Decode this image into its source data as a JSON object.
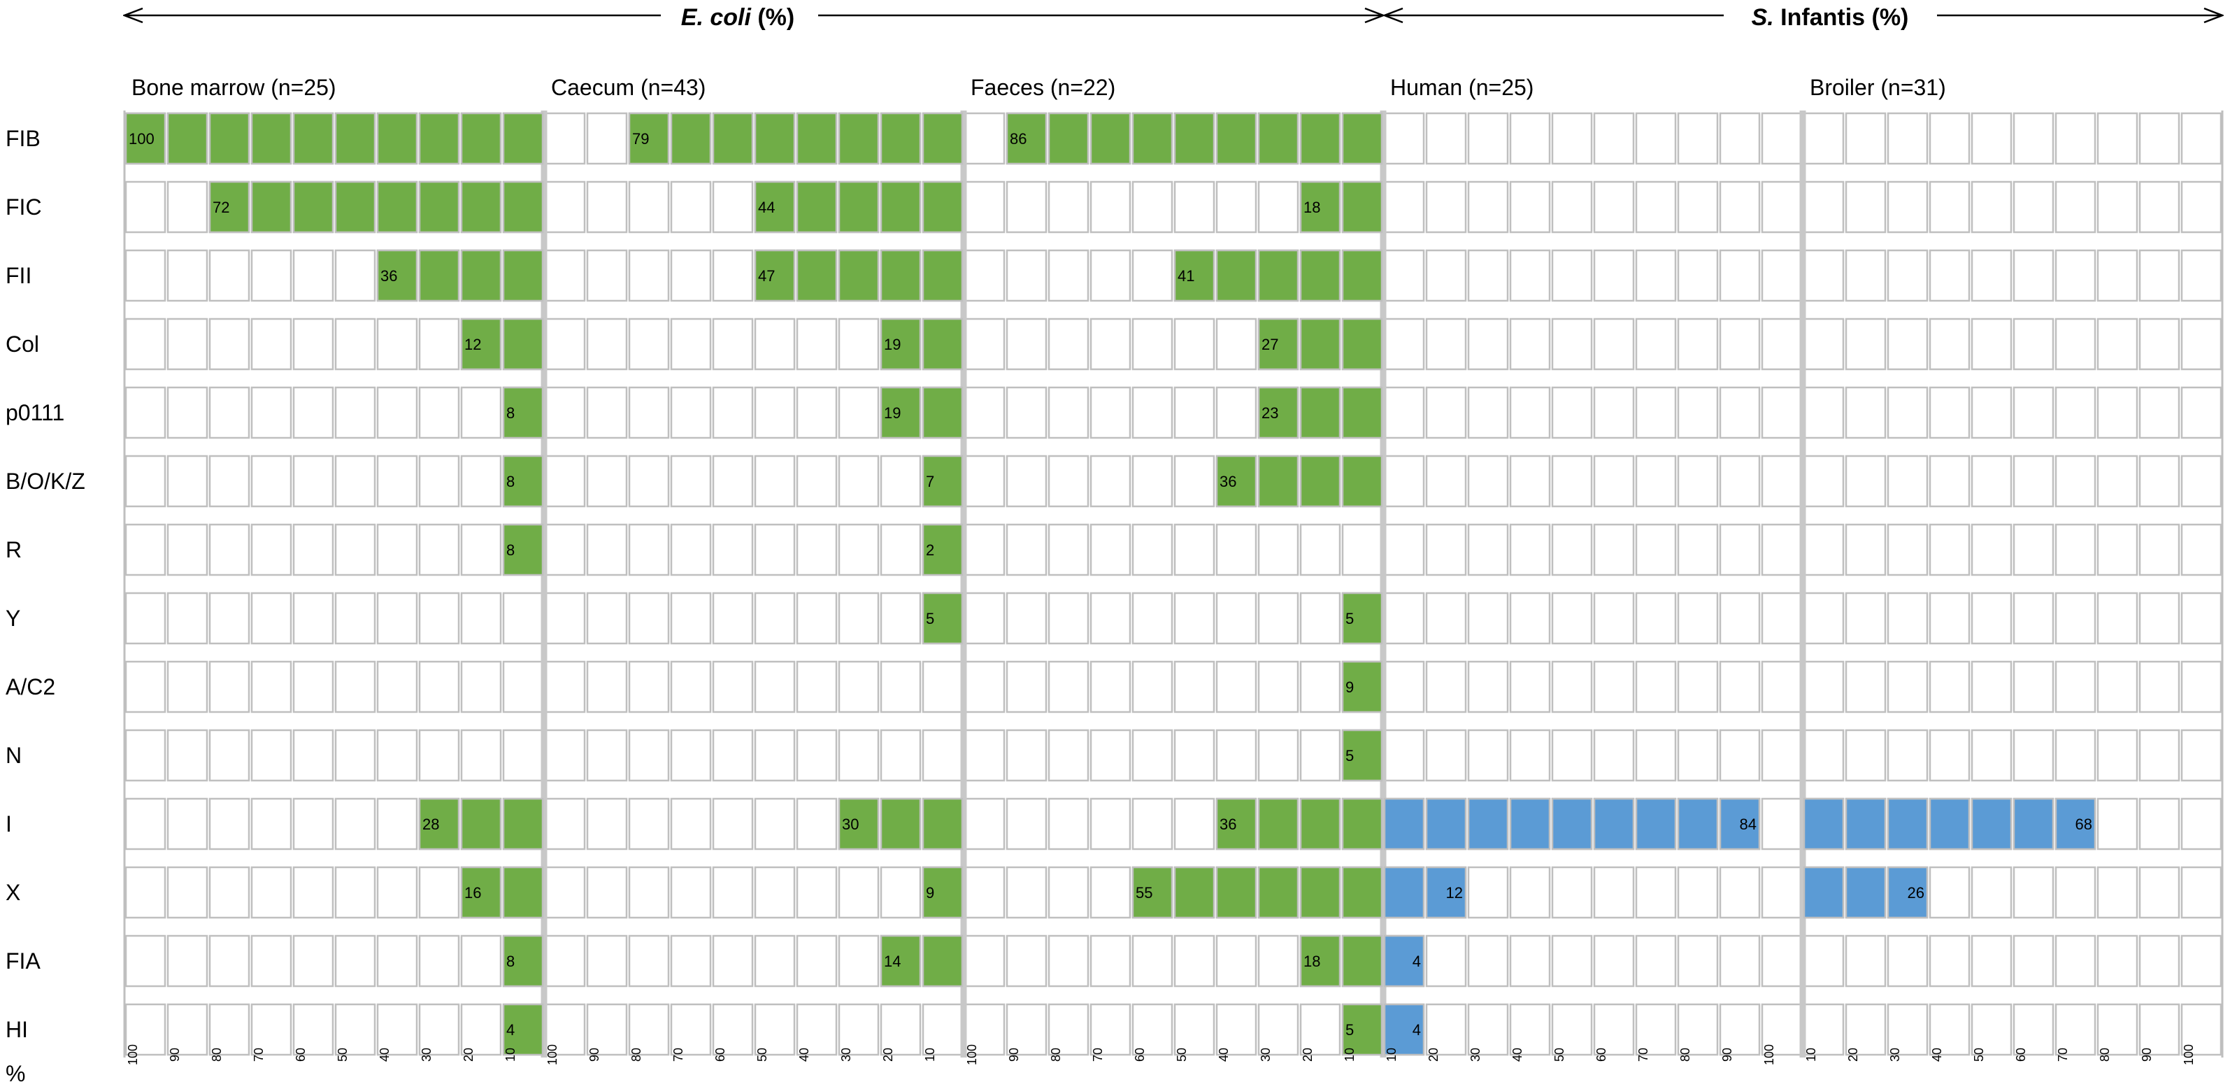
{
  "chart_data": {
    "type": "bar",
    "headers": [
      {
        "title_prefix": "E. coli",
        "title_suffix": " (%)"
      },
      {
        "title_prefix": "S.",
        "title_suffix": " Infantis (%)"
      }
    ],
    "row_axis_label": "%",
    "categories": [
      "FIB",
      "FIC",
      "FII",
      "Col",
      "p0111",
      "B/O/K/Z",
      "R",
      "Y",
      "A/C2",
      "N",
      "I",
      "X",
      "FIA",
      "HI"
    ],
    "panels": [
      {
        "name": "Bone marrow (n=25)",
        "direction": "right-to-left",
        "color": "#70AD47",
        "values": [
          100,
          72,
          36,
          12,
          8,
          8,
          8,
          null,
          null,
          null,
          28,
          16,
          8,
          4
        ]
      },
      {
        "name": "Caecum (n=43)",
        "direction": "right-to-left",
        "color": "#70AD47",
        "values": [
          79,
          44,
          47,
          19,
          19,
          7,
          2,
          5,
          null,
          null,
          30,
          9,
          14,
          null
        ]
      },
      {
        "name": "Faeces (n=22)",
        "direction": "right-to-left",
        "color": "#70AD47",
        "values": [
          86,
          18,
          41,
          27,
          23,
          36,
          null,
          5,
          9,
          5,
          36,
          55,
          18,
          5
        ]
      },
      {
        "name": "Human (n=25)",
        "direction": "left-to-right",
        "color": "#5B9BD5",
        "values": [
          null,
          null,
          null,
          null,
          null,
          null,
          null,
          null,
          null,
          null,
          84,
          12,
          4,
          4
        ]
      },
      {
        "name": "Broiler (n=31)",
        "direction": "left-to-right",
        "color": "#5B9BD5",
        "values": [
          null,
          null,
          null,
          null,
          null,
          null,
          null,
          null,
          null,
          null,
          68,
          26,
          null,
          null
        ]
      }
    ],
    "tick_labels_desc": [
      "100",
      "90",
      "80",
      "70",
      "60",
      "50",
      "40",
      "30",
      "20",
      "10"
    ],
    "tick_labels_asc": [
      "10",
      "20",
      "30",
      "40",
      "50",
      "60",
      "70",
      "80",
      "90",
      "100"
    ],
    "xlim": [
      0,
      100
    ],
    "colors": {
      "green": "#70AD47",
      "blue": "#5B9BD5",
      "grid": "#BFBFBF",
      "separator": "#C8C8C8"
    }
  }
}
